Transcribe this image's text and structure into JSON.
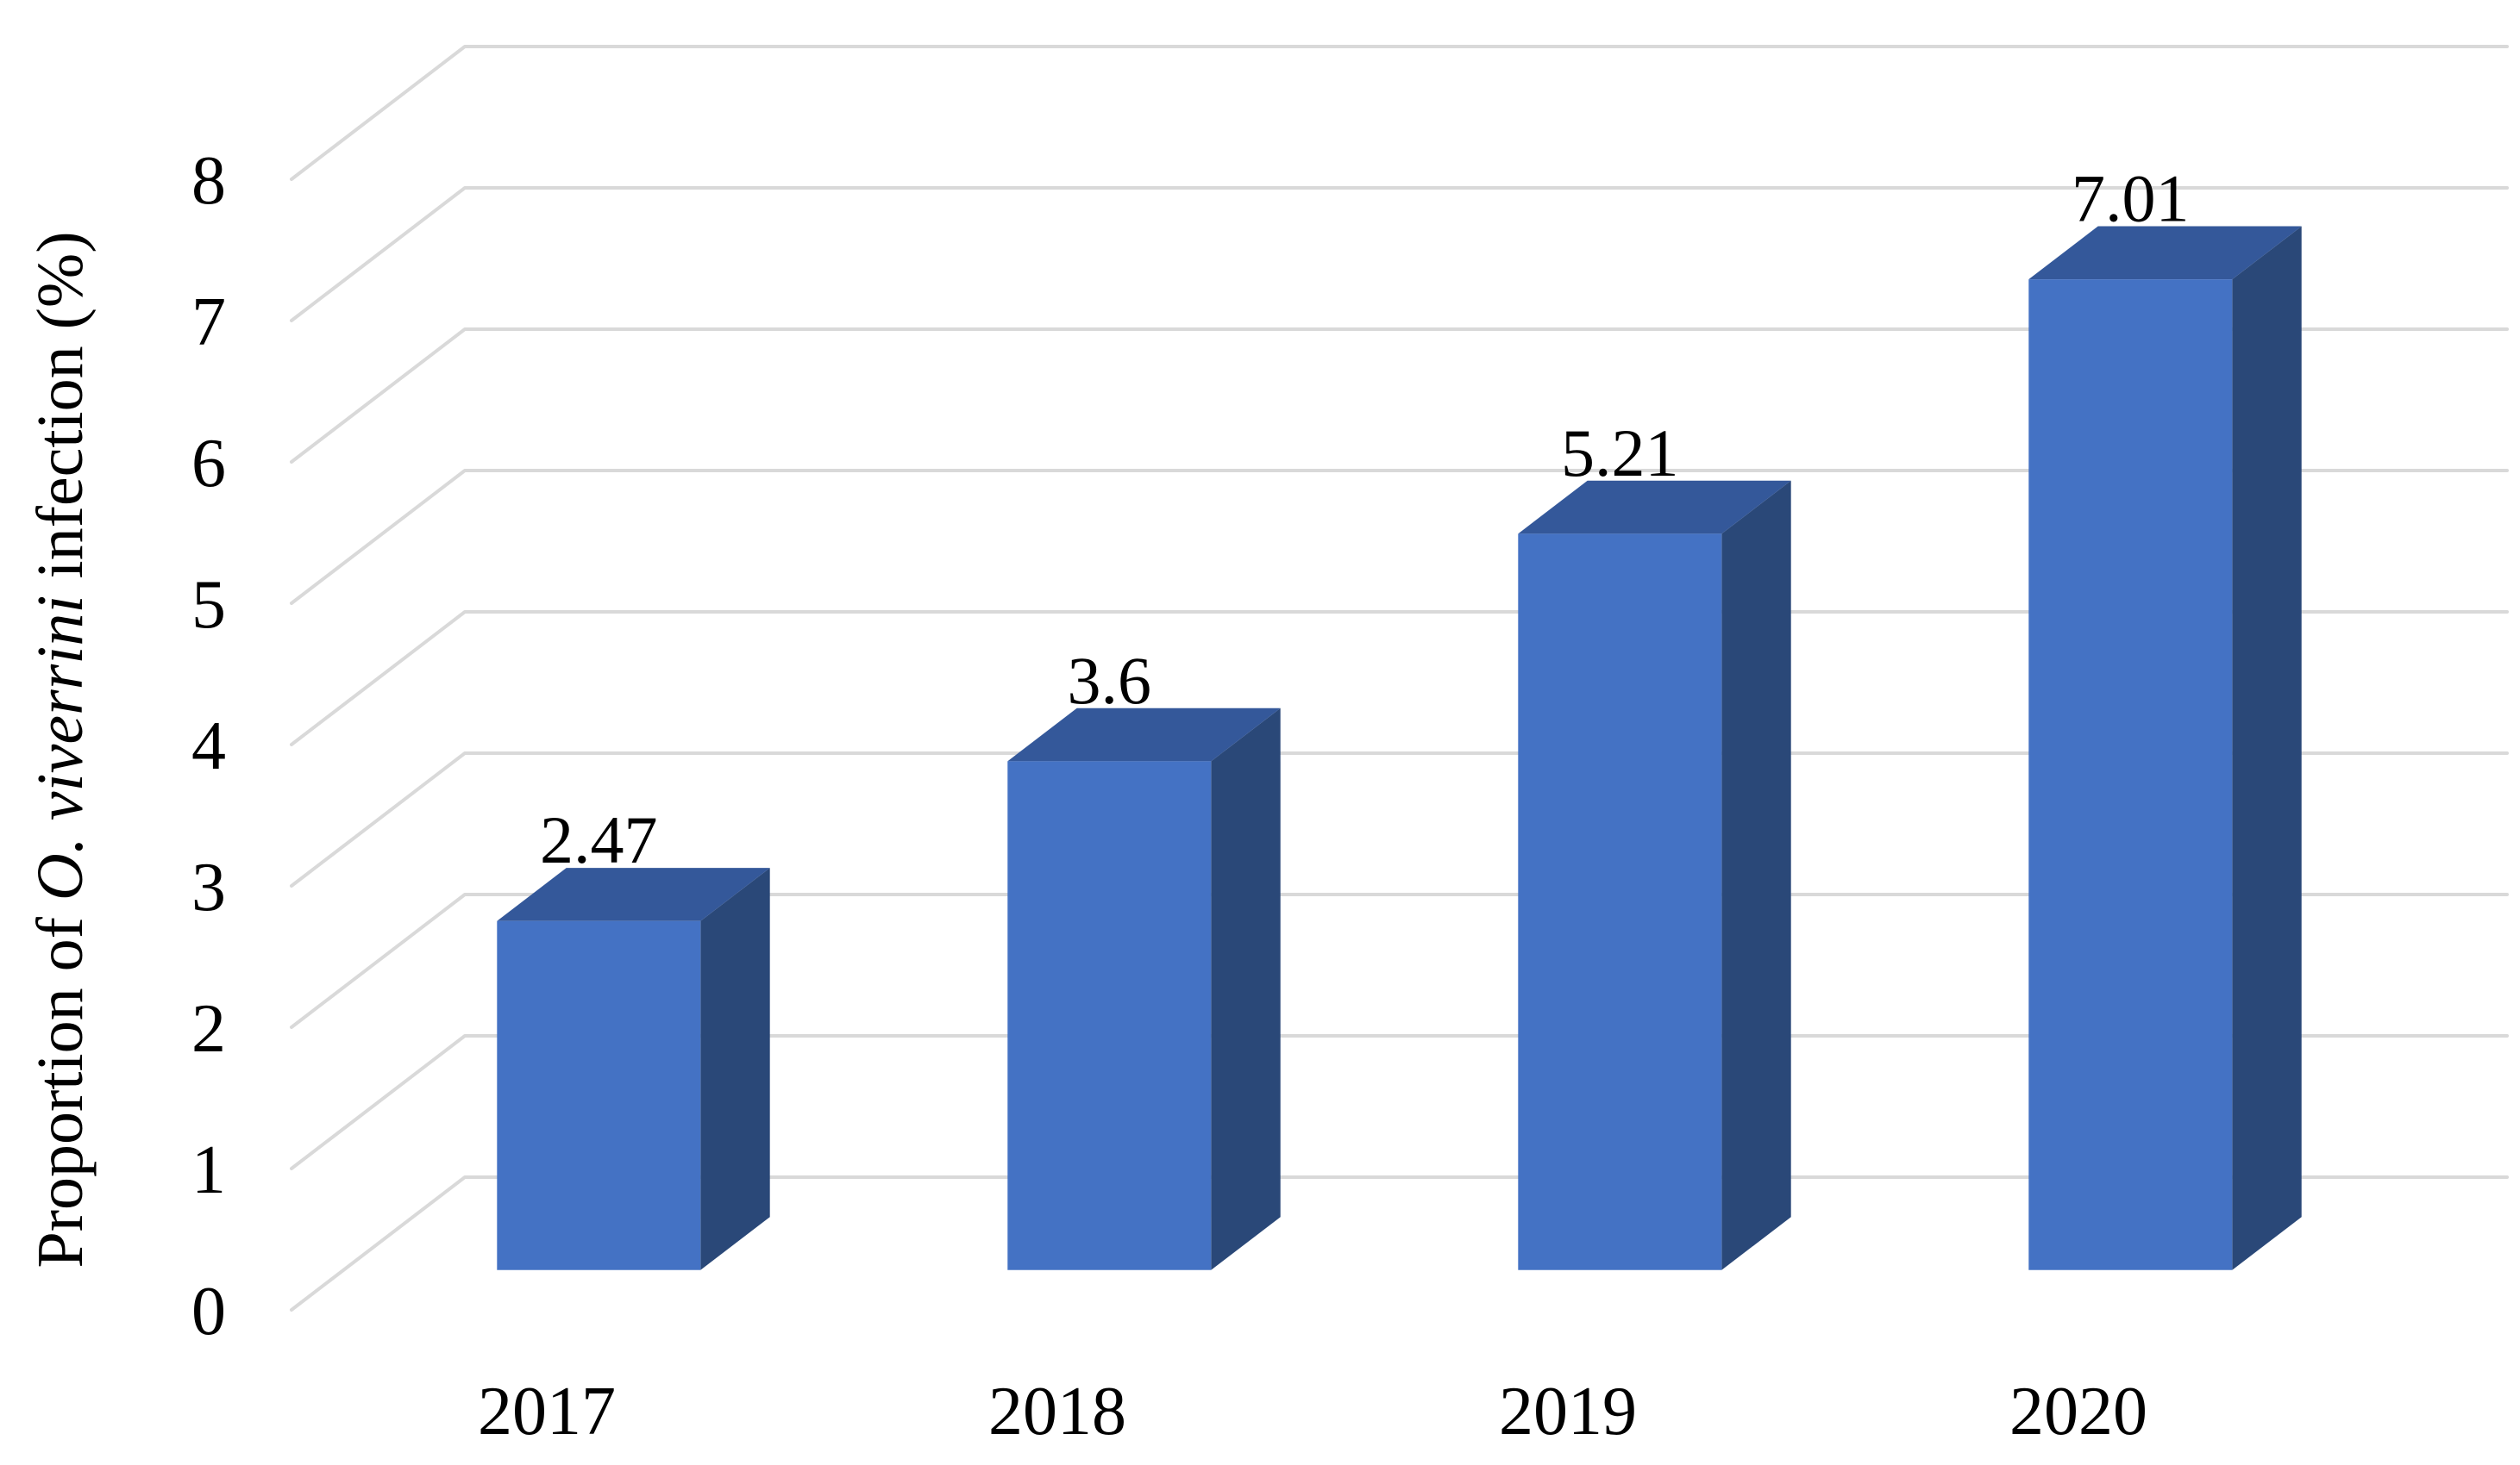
{
  "chart_data": {
    "type": "bar",
    "subtype": "3d-column",
    "title": "",
    "xlabel": "",
    "ylabel": "Proportion of O. viverrini infection (%)",
    "ylabel_parts": [
      {
        "text": "Proportion of ",
        "italic": false
      },
      {
        "text": "O. viverrini",
        "italic": true
      },
      {
        "text": " infection (%)",
        "italic": false
      }
    ],
    "categories": [
      "2017",
      "2018",
      "2019",
      "2020"
    ],
    "values": [
      2.47,
      3.6,
      5.21,
      7.01
    ],
    "data_labels": [
      "2.47",
      "3.6",
      "5.21",
      "7.01"
    ],
    "ylim": [
      0,
      8
    ],
    "ytick_step": 1,
    "ytick_labels": [
      "0",
      "1",
      "2",
      "3",
      "4",
      "5",
      "6",
      "7",
      "8"
    ],
    "grid": true,
    "legend_visible": false,
    "colors": {
      "bar_front": "#4472C4",
      "bar_top": "#34589A",
      "bar_side": "#2A4878",
      "gridline": "#D9D9D9",
      "label_text": "#000000",
      "background": "#FFFFFF"
    }
  }
}
